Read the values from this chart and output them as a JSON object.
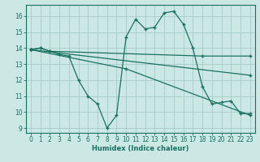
{
  "xlabel": "Humidex (Indice chaleur)",
  "bg_color": "#cce8e5",
  "grid_color": "#aacfcc",
  "line_color": "#1a7060",
  "xlim": [
    -0.5,
    23.5
  ],
  "ylim": [
    8.7,
    16.7
  ],
  "yticks": [
    9,
    10,
    11,
    12,
    13,
    14,
    15,
    16
  ],
  "xticks": [
    0,
    1,
    2,
    3,
    4,
    5,
    6,
    7,
    8,
    9,
    10,
    11,
    12,
    13,
    14,
    15,
    16,
    17,
    18,
    19,
    20,
    21,
    22,
    23
  ],
  "series": [
    {
      "x": [
        0,
        1,
        2,
        3,
        4,
        5,
        6,
        7,
        8,
        9,
        10,
        11,
        12,
        13,
        14,
        15,
        16,
        17,
        18,
        19,
        20,
        21,
        22,
        23
      ],
      "y": [
        13.9,
        14.0,
        13.8,
        13.6,
        13.5,
        12.0,
        11.0,
        10.5,
        9.0,
        9.8,
        14.7,
        15.8,
        15.2,
        15.3,
        16.2,
        16.3,
        15.5,
        14.0,
        11.6,
        10.5,
        10.6,
        10.7,
        9.9,
        9.9
      ]
    },
    {
      "x": [
        0,
        1,
        2,
        18,
        23
      ],
      "y": [
        13.9,
        14.0,
        13.8,
        13.5,
        13.5
      ]
    },
    {
      "x": [
        0,
        23
      ],
      "y": [
        13.9,
        12.3
      ]
    },
    {
      "x": [
        0,
        10,
        23
      ],
      "y": [
        13.9,
        12.7,
        9.8
      ]
    }
  ]
}
